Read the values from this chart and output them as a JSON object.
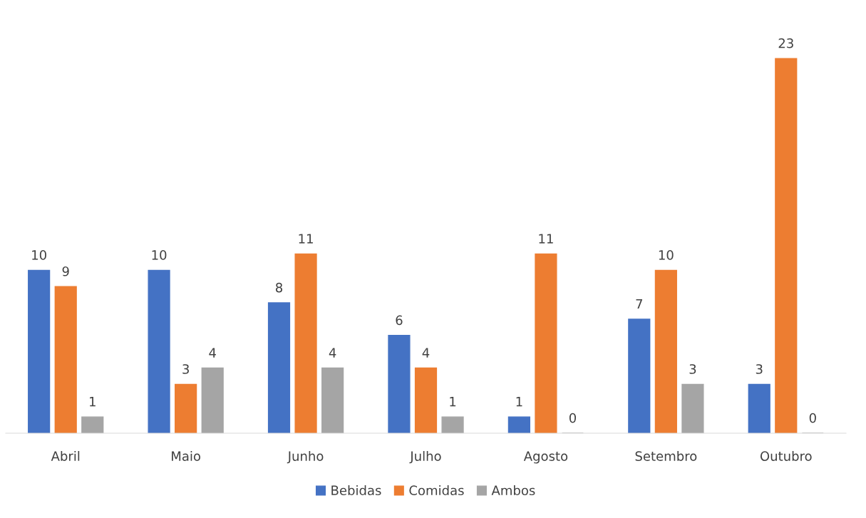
{
  "chart_data": {
    "type": "bar",
    "categories": [
      "Abril",
      "Maio",
      "Junho",
      "Julho",
      "Agosto",
      "Setembro",
      "Outubro"
    ],
    "series": [
      {
        "name": "Bebidas",
        "color": "#4472c4",
        "values": [
          10,
          10,
          8,
          6,
          1,
          7,
          3
        ]
      },
      {
        "name": "Comidas",
        "color": "#ed7d31",
        "values": [
          9,
          3,
          11,
          4,
          11,
          10,
          23
        ]
      },
      {
        "name": "Ambos",
        "color": "#a5a5a5",
        "values": [
          1,
          4,
          4,
          1,
          0,
          3,
          0
        ]
      }
    ],
    "data_labels": true,
    "legend": "bottom"
  }
}
